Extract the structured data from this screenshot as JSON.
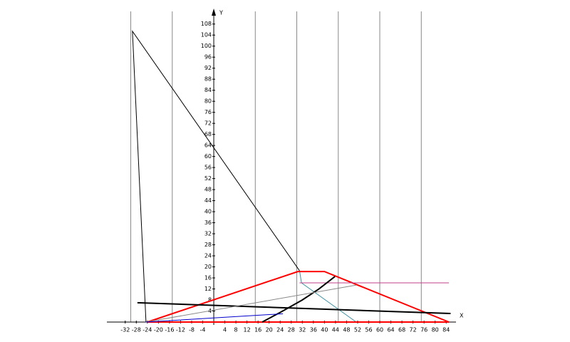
{
  "chart_data": {
    "type": "line",
    "x_label": "X",
    "y_label": "Y",
    "xlim": [
      -34,
      86
    ],
    "ylim": [
      0,
      110
    ],
    "xticks": [
      -32,
      -28,
      -24,
      -20,
      -16,
      -12,
      -8,
      -4,
      4,
      8,
      12,
      16,
      20,
      24,
      28,
      32,
      36,
      40,
      44,
      48,
      52,
      56,
      60,
      64,
      68,
      72,
      76,
      80,
      84
    ],
    "yticks": [
      4,
      8,
      12,
      16,
      20,
      24,
      28,
      32,
      36,
      40,
      44,
      48,
      52,
      56,
      60,
      64,
      68,
      72,
      76,
      80,
      84,
      88,
      92,
      96,
      100,
      104,
      108
    ],
    "xgrid": [
      -30,
      -15,
      15,
      30,
      45,
      60,
      75
    ],
    "series": [
      {
        "color": "#000000",
        "width": 1,
        "x": [
          -24.5,
          -29.4,
          31
        ],
        "values": [
          0,
          105.4,
          18.6
        ]
      },
      {
        "color": "#3a8fa0",
        "width": 1,
        "x": [
          31,
          31.7,
          51.5
        ],
        "values": [
          18.6,
          14.2,
          0
        ]
      },
      {
        "color": "#ff0000",
        "width": 2,
        "x": [
          -24,
          30.4,
          40,
          85,
          -24
        ],
        "values": [
          0,
          18.3,
          18.3,
          0,
          0
        ]
      },
      {
        "color": "#c0408a",
        "width": 1,
        "x": [
          31,
          85
        ],
        "values": [
          14.2,
          14.2
        ]
      },
      {
        "color": "#000000",
        "width": 2,
        "x": [
          -27.6,
          85.6
        ],
        "values": [
          7,
          3.1
        ]
      },
      {
        "color": "#000000",
        "width": 2,
        "x": [
          17.5,
          24,
          32,
          38,
          43.8
        ],
        "values": [
          0,
          3.5,
          8,
          12,
          16.5
        ]
      },
      {
        "color": "#888888",
        "width": 1,
        "x": [
          -24.5,
          51.5
        ],
        "values": [
          0,
          13.4
        ]
      },
      {
        "color": "#0000cc",
        "width": 1,
        "x": [
          -24.5,
          25
        ],
        "values": [
          0,
          3
        ]
      }
    ]
  }
}
